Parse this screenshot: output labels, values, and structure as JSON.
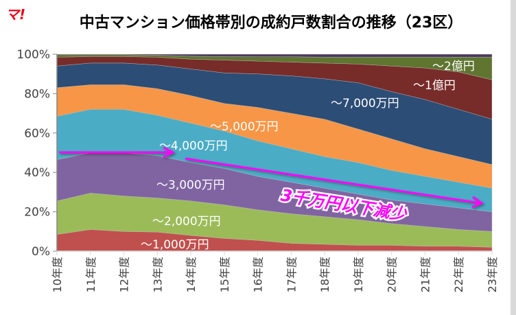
{
  "logo": "マ!",
  "chart_data": {
    "type": "area",
    "stacked": "percent",
    "title": "中古マンション価格帯別の成約戸数割合の推移（23区）",
    "categories": [
      "10年度",
      "11年度",
      "12年度",
      "13年度",
      "14年度",
      "15年度",
      "16年度",
      "17年度",
      "18年度",
      "19年度",
      "20年度",
      "21年度",
      "22年度",
      "23年度"
    ],
    "ylim": [
      0,
      100
    ],
    "yticks": [
      "0%",
      "20%",
      "40%",
      "60%",
      "80%",
      "100%"
    ],
    "grid": false,
    "series": [
      {
        "name": "～1,000万円",
        "color": "#c0504d",
        "values": [
          8.5,
          11,
          10,
          9.7,
          8,
          6.5,
          5.5,
          4,
          3.5,
          3,
          3,
          2.5,
          2.5,
          2
        ]
      },
      {
        "name": "～2,000万円",
        "color": "#9bbb59",
        "values": [
          17,
          18.5,
          18,
          17.3,
          17.5,
          17,
          15.5,
          15,
          14,
          13,
          11,
          10,
          8.5,
          8
        ]
      },
      {
        "name": "～3,000万円",
        "color": "#8064a2",
        "values": [
          21,
          20.5,
          22,
          21.5,
          19.5,
          18.5,
          17,
          16,
          14.5,
          13,
          12,
          11.5,
          11,
          10
        ]
      },
      {
        "name": "～4,000万円",
        "color": "#4bacc6",
        "values": [
          22,
          22,
          22,
          20.5,
          20,
          19,
          18,
          17,
          16,
          16,
          15,
          14,
          13,
          12
        ]
      },
      {
        "name": "～5,000万円",
        "color": "#f79646",
        "values": [
          14.5,
          12.5,
          12.5,
          13.5,
          14,
          14,
          17,
          18,
          19,
          17,
          16,
          14,
          13,
          12
        ]
      },
      {
        "name": "～7,000万円",
        "color": "#2c4d75",
        "values": [
          11,
          11,
          11,
          12,
          13.5,
          15.5,
          17,
          19,
          20.5,
          23.5,
          24,
          25,
          24,
          23
        ]
      },
      {
        "name": "～1億円",
        "color": "#772c2a",
        "values": [
          4.5,
          3.3,
          3.3,
          4,
          5,
          6.5,
          6.5,
          7,
          8,
          9.5,
          13,
          16,
          19,
          20
        ]
      },
      {
        "name": "～2億円",
        "color": "#5f7530",
        "values": [
          1.2,
          0.9,
          0.9,
          1,
          1.5,
          1.8,
          2.2,
          2.7,
          3,
          3.5,
          4.5,
          5.5,
          7.5,
          11.5
        ]
      },
      {
        "name": "",
        "color": "#4d3b62",
        "values": [
          0.3,
          0.3,
          0.3,
          0.5,
          1,
          1.2,
          1.3,
          1.3,
          1.5,
          1.5,
          1.5,
          1.5,
          1.5,
          1.5
        ]
      }
    ],
    "annotation": "3千万円以下減少",
    "annotation_color": "#ff00ff"
  }
}
